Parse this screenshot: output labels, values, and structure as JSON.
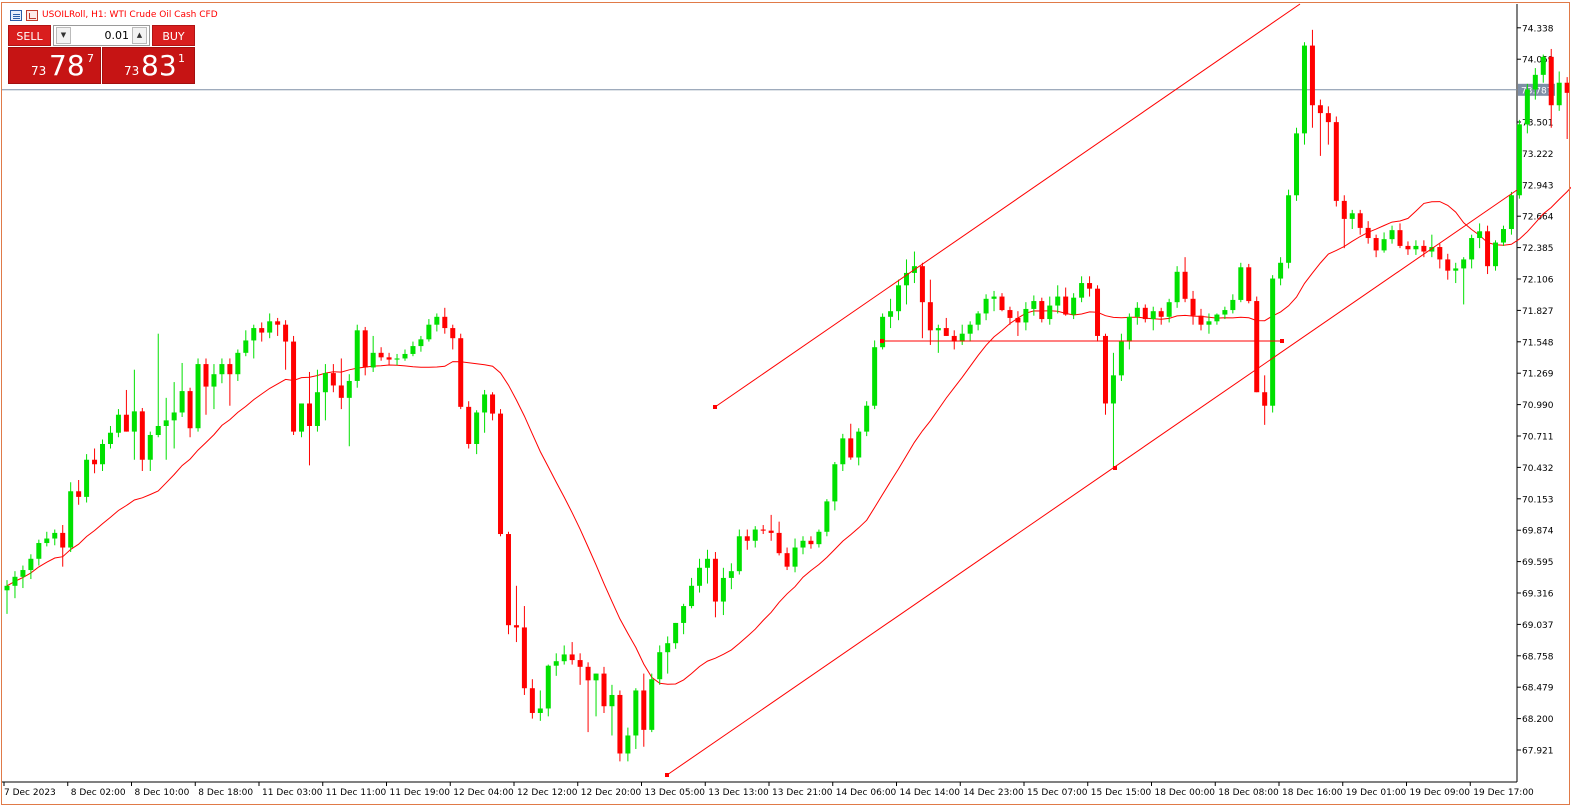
{
  "header": {
    "symbol": "USOILRoll",
    "timeframe": "H1",
    "description": "WTI Crude Oil Cash CFD",
    "title_text": "USOILRoll, H1:  WTI Crude Oil Cash CFD"
  },
  "trade_panel": {
    "sell_label": "SELL",
    "buy_label": "BUY",
    "lot_value": "0.01",
    "sell_price": {
      "small": "73",
      "big": "78",
      "sup": "7"
    },
    "buy_price": {
      "small": "73",
      "big": "83",
      "sup": "1"
    }
  },
  "colors": {
    "bull": "#00e000",
    "bear": "#ff0000",
    "ma": "#ff0000",
    "trendlines": "#ff0000",
    "bid_line": "#7f8fa6",
    "price_tag_bg": "#7f8fa6",
    "frame": "#e07a48"
  },
  "chart_data": {
    "type": "candlestick",
    "y_ticks": [
      "74.338",
      "74.059",
      "73.501",
      "73.222",
      "72.943",
      "72.664",
      "72.385",
      "72.106",
      "71.827",
      "71.548",
      "71.269",
      "70.990",
      "70.711",
      "70.432",
      "70.153",
      "69.874",
      "69.595",
      "69.316",
      "69.037",
      "68.758",
      "68.479",
      "68.200",
      "67.921"
    ],
    "y_range": [
      67.7,
      74.4
    ],
    "current_price_label": "73.787",
    "current_price": 73.787,
    "x_ticks": [
      "7 Dec 2023",
      "8 Dec 02:00",
      "8 Dec 10:00",
      "8 Dec 18:00",
      "11 Dec 03:00",
      "11 Dec 11:00",
      "11 Dec 19:00",
      "12 Dec 04:00",
      "12 Dec 12:00",
      "12 Dec 20:00",
      "13 Dec 05:00",
      "13 Dec 13:00",
      "13 Dec 21:00",
      "14 Dec 06:00",
      "14 Dec 14:00",
      "14 Dec 23:00",
      "15 Dec 07:00",
      "15 Dec 15:00",
      "18 Dec 00:00",
      "18 Dec 08:00",
      "18 Dec 16:00",
      "19 Dec 01:00",
      "19 Dec 09:00",
      "19 Dec 17:00"
    ],
    "candles": [
      [
        69.34,
        69.43,
        69.13,
        69.38
      ],
      [
        69.38,
        69.51,
        69.27,
        69.46
      ],
      [
        69.46,
        69.56,
        69.36,
        69.52
      ],
      [
        69.52,
        69.66,
        69.44,
        69.62
      ],
      [
        69.62,
        69.79,
        69.56,
        69.76
      ],
      [
        69.76,
        69.86,
        69.73,
        69.8
      ],
      [
        69.8,
        69.88,
        69.74,
        69.85
      ],
      [
        69.85,
        69.92,
        69.55,
        69.72
      ],
      [
        69.72,
        70.3,
        69.68,
        70.22
      ],
      [
        70.22,
        70.32,
        70.1,
        70.17
      ],
      [
        70.17,
        70.55,
        70.12,
        70.5
      ],
      [
        70.5,
        70.6,
        70.38,
        70.46
      ],
      [
        70.46,
        70.68,
        70.4,
        70.64
      ],
      [
        70.64,
        70.8,
        70.6,
        70.74
      ],
      [
        70.74,
        70.95,
        70.7,
        70.9
      ],
      [
        70.9,
        71.12,
        70.75,
        70.75
      ],
      [
        70.75,
        71.3,
        70.5,
        70.93
      ],
      [
        70.93,
        70.96,
        70.4,
        70.5
      ],
      [
        70.5,
        70.75,
        70.4,
        70.72
      ],
      [
        70.72,
        71.62,
        70.7,
        70.8
      ],
      [
        70.8,
        71.05,
        70.5,
        70.85
      ],
      [
        70.85,
        71.19,
        70.6,
        70.92
      ],
      [
        70.92,
        71.36,
        70.88,
        71.11
      ],
      [
        71.11,
        71.14,
        70.7,
        70.78
      ],
      [
        70.78,
        71.4,
        70.75,
        71.35
      ],
      [
        71.35,
        71.4,
        70.9,
        71.15
      ],
      [
        71.15,
        71.35,
        70.95,
        71.26
      ],
      [
        71.26,
        71.4,
        71.18,
        71.35
      ],
      [
        71.35,
        71.4,
        70.98,
        71.26
      ],
      [
        71.26,
        71.48,
        71.2,
        71.45
      ],
      [
        71.45,
        71.65,
        71.42,
        71.56
      ],
      [
        71.56,
        71.7,
        71.4,
        71.67
      ],
      [
        71.67,
        71.72,
        71.55,
        71.63
      ],
      [
        71.63,
        71.8,
        71.58,
        71.73
      ],
      [
        71.73,
        71.76,
        71.6,
        71.7
      ],
      [
        71.7,
        71.74,
        71.3,
        71.55
      ],
      [
        71.55,
        71.6,
        70.72,
        70.75
      ],
      [
        70.75,
        71.0,
        70.7,
        71.0
      ],
      [
        71.0,
        71.28,
        70.45,
        70.8
      ],
      [
        70.8,
        71.3,
        70.75,
        71.1
      ],
      [
        71.1,
        71.35,
        70.85,
        71.27
      ],
      [
        71.27,
        71.35,
        71.1,
        71.16
      ],
      [
        71.16,
        71.4,
        70.95,
        71.05
      ],
      [
        71.05,
        71.26,
        70.62,
        71.2
      ],
      [
        71.2,
        71.7,
        71.14,
        71.65
      ],
      [
        71.65,
        71.68,
        71.25,
        71.32
      ],
      [
        71.32,
        71.6,
        71.28,
        71.45
      ],
      [
        71.45,
        71.5,
        71.38,
        71.41
      ],
      [
        71.41,
        71.45,
        71.34,
        71.39
      ],
      [
        71.39,
        71.44,
        71.34,
        71.4
      ],
      [
        71.4,
        71.48,
        71.38,
        71.44
      ],
      [
        71.44,
        71.55,
        71.42,
        71.51
      ],
      [
        71.51,
        71.6,
        71.46,
        71.57
      ],
      [
        71.57,
        71.75,
        71.55,
        71.7
      ],
      [
        71.7,
        71.8,
        71.64,
        71.77
      ],
      [
        71.77,
        71.85,
        71.62,
        71.67
      ],
      [
        71.67,
        71.7,
        71.48,
        71.58
      ],
      [
        71.58,
        71.62,
        70.95,
        70.97
      ],
      [
        70.97,
        71.02,
        70.6,
        70.64
      ],
      [
        70.64,
        70.94,
        70.55,
        70.92
      ],
      [
        70.92,
        71.12,
        70.74,
        71.08
      ],
      [
        71.08,
        71.1,
        70.85,
        70.91
      ],
      [
        70.91,
        70.95,
        69.82,
        69.84
      ],
      [
        69.84,
        69.86,
        68.95,
        69.03
      ],
      [
        69.03,
        69.38,
        68.88,
        69.01
      ],
      [
        69.01,
        69.2,
        68.41,
        68.47
      ],
      [
        68.47,
        68.55,
        68.2,
        68.25
      ],
      [
        68.25,
        68.45,
        68.18,
        68.29
      ],
      [
        68.29,
        68.68,
        68.22,
        68.67
      ],
      [
        68.67,
        68.78,
        68.58,
        68.71
      ],
      [
        68.71,
        68.85,
        68.68,
        68.77
      ],
      [
        68.77,
        68.88,
        68.68,
        68.72
      ],
      [
        68.72,
        68.78,
        68.5,
        68.66
      ],
      [
        68.66,
        68.7,
        68.08,
        68.54
      ],
      [
        68.54,
        68.6,
        68.22,
        68.6
      ],
      [
        68.6,
        68.66,
        68.25,
        68.31
      ],
      [
        68.31,
        68.5,
        68.05,
        68.41
      ],
      [
        68.41,
        68.45,
        67.82,
        67.89
      ],
      [
        67.89,
        68.12,
        67.82,
        68.05
      ],
      [
        68.05,
        68.47,
        67.93,
        68.45
      ],
      [
        68.45,
        68.6,
        67.95,
        68.1
      ],
      [
        68.1,
        68.6,
        68.08,
        68.55
      ],
      [
        68.55,
        68.85,
        68.5,
        68.79
      ],
      [
        68.79,
        68.93,
        68.6,
        68.87
      ],
      [
        68.87,
        69.05,
        68.82,
        69.05
      ],
      [
        69.05,
        69.22,
        68.95,
        69.2
      ],
      [
        69.2,
        69.45,
        69.18,
        69.38
      ],
      [
        69.38,
        69.62,
        69.32,
        69.54
      ],
      [
        69.54,
        69.7,
        69.4,
        69.62
      ],
      [
        69.62,
        69.68,
        69.1,
        69.24
      ],
      [
        69.24,
        69.54,
        69.12,
        69.45
      ],
      [
        69.45,
        69.58,
        69.35,
        69.51
      ],
      [
        69.51,
        69.88,
        69.48,
        69.82
      ],
      [
        69.82,
        69.88,
        69.7,
        69.78
      ],
      [
        69.78,
        69.91,
        69.72,
        69.88
      ],
      [
        69.88,
        69.92,
        69.84,
        69.87
      ],
      [
        69.87,
        70.01,
        69.78,
        69.85
      ],
      [
        69.85,
        69.95,
        69.65,
        69.67
      ],
      [
        69.67,
        69.72,
        69.52,
        69.55
      ],
      [
        69.55,
        69.8,
        69.5,
        69.72
      ],
      [
        69.72,
        69.82,
        69.66,
        69.78
      ],
      [
        69.78,
        69.82,
        69.71,
        69.75
      ],
      [
        69.75,
        69.88,
        69.72,
        69.86
      ],
      [
        69.86,
        70.15,
        69.82,
        70.13
      ],
      [
        70.13,
        70.48,
        70.05,
        70.46
      ],
      [
        70.46,
        70.73,
        70.4,
        70.69
      ],
      [
        70.69,
        70.82,
        70.5,
        70.52
      ],
      [
        70.52,
        70.78,
        70.45,
        70.75
      ],
      [
        70.75,
        71.02,
        70.71,
        70.98
      ],
      [
        70.98,
        71.56,
        70.95,
        71.5
      ],
      [
        71.5,
        71.8,
        71.48,
        71.77
      ],
      [
        71.77,
        71.93,
        71.67,
        71.82
      ],
      [
        71.82,
        72.1,
        71.74,
        72.05
      ],
      [
        72.05,
        72.28,
        71.88,
        72.16
      ],
      [
        72.16,
        72.35,
        72.07,
        72.22
      ],
      [
        72.22,
        72.25,
        71.58,
        71.9
      ],
      [
        71.9,
        72.1,
        71.52,
        71.65
      ],
      [
        71.65,
        71.7,
        71.45,
        71.67
      ],
      [
        71.67,
        71.76,
        71.6,
        71.6
      ],
      [
        71.6,
        71.65,
        71.48,
        71.55
      ],
      [
        71.55,
        71.7,
        71.52,
        71.62
      ],
      [
        71.62,
        71.73,
        71.55,
        71.7
      ],
      [
        71.7,
        71.82,
        71.65,
        71.8
      ],
      [
        71.8,
        71.97,
        71.74,
        71.93
      ],
      [
        71.93,
        72.0,
        71.82,
        71.95
      ],
      [
        71.95,
        71.98,
        71.82,
        71.83
      ],
      [
        71.83,
        71.86,
        71.7,
        71.76
      ],
      [
        71.76,
        71.82,
        71.6,
        71.72
      ],
      [
        71.72,
        71.9,
        71.65,
        71.84
      ],
      [
        71.84,
        71.96,
        71.78,
        71.91
      ],
      [
        71.91,
        71.94,
        71.72,
        71.75
      ],
      [
        71.75,
        71.95,
        71.7,
        71.87
      ],
      [
        71.87,
        72.05,
        71.8,
        71.95
      ],
      [
        71.95,
        72.03,
        71.78,
        71.79
      ],
      [
        71.79,
        71.98,
        71.75,
        71.94
      ],
      [
        71.94,
        72.13,
        71.9,
        72.07
      ],
      [
        72.07,
        72.13,
        71.95,
        72.02
      ],
      [
        72.02,
        72.05,
        71.55,
        71.6
      ],
      [
        71.6,
        71.62,
        70.9,
        71.0
      ],
      [
        71.0,
        71.45,
        70.43,
        71.25
      ],
      [
        71.25,
        71.62,
        71.2,
        71.55
      ],
      [
        71.55,
        71.8,
        71.48,
        71.77
      ],
      [
        71.77,
        71.9,
        71.7,
        71.85
      ],
      [
        71.85,
        71.88,
        71.72,
        71.75
      ],
      [
        71.75,
        71.86,
        71.65,
        71.82
      ],
      [
        71.82,
        71.85,
        71.7,
        71.77
      ],
      [
        71.77,
        71.93,
        71.72,
        71.9
      ],
      [
        71.9,
        72.22,
        71.85,
        72.17
      ],
      [
        72.17,
        72.3,
        71.9,
        71.93
      ],
      [
        71.93,
        72.0,
        71.7,
        71.78
      ],
      [
        71.78,
        71.84,
        71.65,
        71.7
      ],
      [
        71.7,
        71.8,
        71.62,
        71.73
      ],
      [
        71.73,
        71.8,
        71.7,
        71.79
      ],
      [
        71.79,
        71.86,
        71.75,
        71.83
      ],
      [
        71.83,
        71.97,
        71.8,
        71.92
      ],
      [
        71.92,
        72.25,
        71.9,
        72.21
      ],
      [
        72.21,
        72.24,
        71.89,
        71.91
      ],
      [
        71.91,
        71.95,
        71.1,
        71.1
      ],
      [
        71.1,
        71.25,
        70.81,
        70.98
      ],
      [
        70.98,
        72.14,
        70.92,
        72.11
      ],
      [
        72.11,
        72.3,
        72.05,
        72.25
      ],
      [
        72.25,
        72.9,
        72.2,
        72.85
      ],
      [
        72.85,
        73.45,
        72.8,
        73.4
      ],
      [
        73.4,
        74.21,
        73.3,
        74.18
      ],
      [
        74.18,
        74.32,
        73.45,
        73.65
      ],
      [
        73.65,
        73.7,
        73.2,
        73.58
      ],
      [
        73.58,
        73.64,
        73.3,
        73.5
      ],
      [
        73.5,
        73.55,
        72.75,
        72.8
      ],
      [
        72.8,
        72.85,
        72.38,
        72.64
      ],
      [
        72.64,
        72.72,
        72.55,
        72.69
      ],
      [
        72.69,
        72.72,
        72.5,
        72.56
      ],
      [
        72.56,
        72.62,
        72.42,
        72.47
      ],
      [
        72.47,
        72.5,
        72.3,
        72.36
      ],
      [
        72.36,
        72.52,
        72.34,
        72.46
      ],
      [
        72.46,
        72.58,
        72.42,
        72.54
      ],
      [
        72.54,
        72.6,
        72.38,
        72.4
      ],
      [
        72.4,
        72.44,
        72.32,
        72.37
      ],
      [
        72.37,
        72.45,
        72.32,
        72.4
      ],
      [
        72.4,
        72.45,
        72.3,
        72.35
      ],
      [
        72.35,
        72.5,
        72.3,
        72.39
      ],
      [
        72.39,
        72.42,
        72.2,
        72.28
      ],
      [
        72.28,
        72.33,
        72.1,
        72.18
      ],
      [
        72.18,
        72.25,
        72.07,
        72.2
      ],
      [
        72.2,
        72.3,
        71.88,
        72.28
      ],
      [
        72.28,
        72.5,
        72.2,
        72.47
      ],
      [
        72.47,
        72.6,
        72.38,
        72.53
      ],
      [
        72.53,
        72.58,
        72.15,
        72.22
      ],
      [
        72.22,
        72.45,
        72.18,
        72.43
      ],
      [
        72.43,
        72.58,
        72.4,
        72.55
      ],
      [
        72.55,
        72.88,
        72.5,
        72.85
      ],
      [
        72.85,
        73.52,
        72.82,
        73.48
      ],
      [
        73.48,
        73.84,
        73.4,
        73.79
      ],
      [
        73.79,
        73.98,
        73.7,
        73.92
      ],
      [
        73.92,
        74.1,
        73.85,
        74.08
      ],
      [
        74.08,
        74.15,
        73.45,
        73.65
      ],
      [
        73.65,
        73.95,
        73.6,
        73.85
      ],
      [
        73.85,
        73.9,
        73.35,
        73.76
      ],
      [
        73.76,
        74.0,
        73.7,
        73.95
      ],
      [
        73.95,
        74.12,
        73.88,
        74.08
      ],
      [
        74.08,
        74.1,
        73.75,
        73.8
      ]
    ],
    "ma_label": "",
    "trendlines": [
      {
        "type": "upper-channel",
        "from": [
          "12 Dec 19:00",
          70.92
        ],
        "to": [
          "19 Dec 18:00",
          74.4
        ]
      },
      {
        "type": "lower-channel",
        "from": [
          "13 Dec 05:00",
          67.7
        ],
        "to": [
          "19 Dec 18:00",
          72.8
        ]
      },
      {
        "type": "horizontal",
        "from": [
          "14 Dec 08:00",
          71.51
        ],
        "to": [
          "18 Dec 10:00",
          71.51
        ]
      }
    ]
  }
}
